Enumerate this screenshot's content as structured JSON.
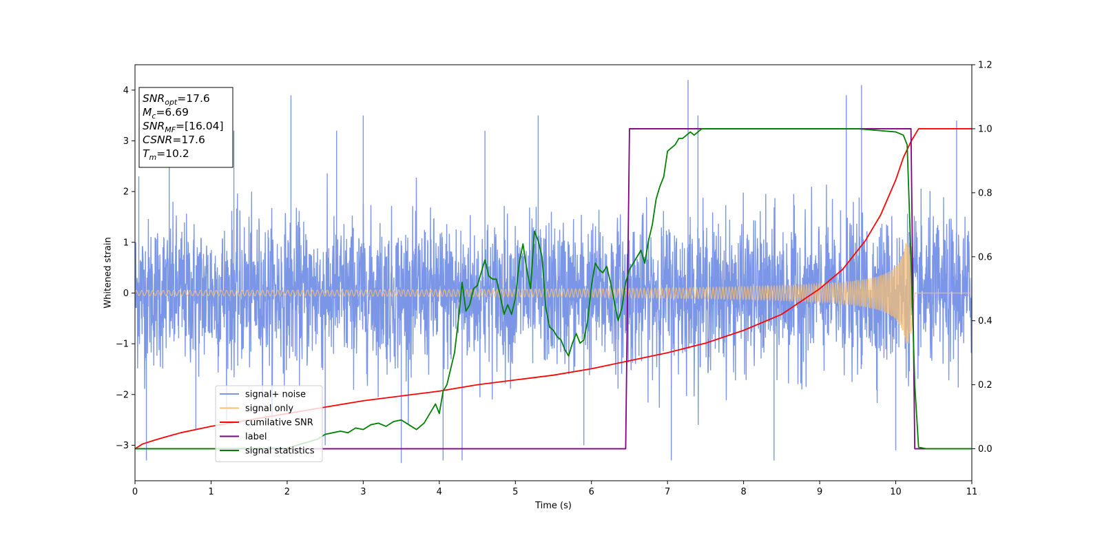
{
  "chart_data": {
    "type": "line",
    "xlabel": "Time (s)",
    "ylabel": "Whitened strain",
    "xlim": [
      0,
      11
    ],
    "ylim_left": [
      -3.7,
      4.5
    ],
    "ylim_right": [
      -0.1,
      1.2
    ],
    "xticks": [
      "0",
      "1",
      "2",
      "3",
      "4",
      "5",
      "6",
      "7",
      "8",
      "9",
      "10",
      "11"
    ],
    "yticks_left": [
      "−3",
      "−2",
      "−1",
      "0",
      "1",
      "2",
      "3",
      "4"
    ],
    "yticks_left_values": [
      -3,
      -2,
      -1,
      0,
      1,
      2,
      3,
      4
    ],
    "yticks_right": [
      "0.0",
      "0.2",
      "0.4",
      "0.6",
      "0.8",
      "1.0",
      "1.2"
    ],
    "yticks_right_values": [
      0.0,
      0.2,
      0.4,
      0.6,
      0.8,
      1.0,
      1.2
    ],
    "grid": false,
    "legend_placement": "lower-left",
    "info_box": [
      {
        "sym": "SNR",
        "sub": "opt",
        "val": "=17.6"
      },
      {
        "sym": "M",
        "sub": "c",
        "val": "=6.69"
      },
      {
        "sym": "SNR",
        "sub": "MF",
        "val": "=[16.04]"
      },
      {
        "sym": "CSNR",
        "sub": "",
        "val": "=17.6"
      },
      {
        "sym": "T",
        "sub": "m",
        "val": "=10.2"
      }
    ],
    "series": [
      {
        "name": "signal+ noise",
        "axis": "left",
        "color": "#7b96e7",
        "kind": "noise",
        "noise_band_typical": 1.7,
        "spikes": [
          [
            0.05,
            2.3
          ],
          [
            0.15,
            -3.3
          ],
          [
            0.45,
            3.2
          ],
          [
            0.8,
            -2.7
          ],
          [
            1.3,
            3.2
          ],
          [
            1.8,
            -2.5
          ],
          [
            2.05,
            3.9
          ],
          [
            2.5,
            -3.0
          ],
          [
            2.65,
            3.2
          ],
          [
            3.0,
            3.5
          ],
          [
            3.5,
            -3.35
          ],
          [
            4.05,
            -3.3
          ],
          [
            4.3,
            -3.3
          ],
          [
            4.6,
            3.2
          ],
          [
            5.3,
            3.5
          ],
          [
            5.9,
            -3.0
          ],
          [
            7.05,
            -3.3
          ],
          [
            7.27,
            4.2
          ],
          [
            7.4,
            3.5
          ],
          [
            8.4,
            -3.3
          ],
          [
            9.35,
            3.9
          ],
          [
            9.55,
            4.1
          ],
          [
            10.0,
            -3.1
          ],
          [
            10.8,
            3.4
          ]
        ]
      },
      {
        "name": "signal only",
        "axis": "left",
        "color": "#f6bf75",
        "kind": "chirp",
        "amp_start": 0.05,
        "amp_end": 1.0,
        "t_merge": 10.2
      },
      {
        "name": "cumilative SNR",
        "axis": "right",
        "color": "#ff0000",
        "x": [
          0,
          0.1,
          0.3,
          0.6,
          1,
          1.5,
          2,
          2.5,
          3,
          3.5,
          4,
          4.5,
          5,
          5.5,
          6,
          6.5,
          7,
          7.5,
          8,
          8.5,
          9,
          9.3,
          9.6,
          9.8,
          10,
          10.1,
          10.2,
          10.3,
          11
        ],
        "y": [
          0.0,
          0.015,
          0.03,
          0.05,
          0.07,
          0.09,
          0.11,
          0.13,
          0.15,
          0.165,
          0.18,
          0.2,
          0.215,
          0.23,
          0.25,
          0.275,
          0.3,
          0.33,
          0.37,
          0.42,
          0.5,
          0.56,
          0.65,
          0.73,
          0.84,
          0.91,
          0.96,
          1.0,
          1.0
        ]
      },
      {
        "name": "label",
        "axis": "right",
        "color": "#800080",
        "x": [
          0,
          6.45,
          6.5,
          10.2,
          10.25,
          11
        ],
        "y": [
          0,
          0,
          1,
          1,
          0,
          0
        ]
      },
      {
        "name": "signal statistics",
        "axis": "right",
        "color": "#008000",
        "x": [
          0,
          1,
          2,
          2.4,
          2.5,
          2.6,
          2.7,
          2.8,
          2.9,
          3.0,
          3.1,
          3.2,
          3.3,
          3.4,
          3.5,
          3.6,
          3.7,
          3.8,
          3.85,
          3.9,
          3.95,
          4.0,
          4.05,
          4.1,
          4.2,
          4.25,
          4.3,
          4.35,
          4.4,
          4.45,
          4.5,
          4.55,
          4.6,
          4.65,
          4.7,
          4.75,
          4.8,
          4.85,
          4.9,
          4.95,
          5.0,
          5.05,
          5.1,
          5.15,
          5.2,
          5.25,
          5.3,
          5.35,
          5.4,
          5.45,
          5.5,
          5.55,
          5.6,
          5.65,
          5.7,
          5.75,
          5.8,
          5.85,
          5.9,
          5.95,
          6.0,
          6.05,
          6.1,
          6.15,
          6.2,
          6.25,
          6.3,
          6.35,
          6.4,
          6.45,
          6.5,
          6.55,
          6.6,
          6.65,
          6.7,
          6.75,
          6.8,
          6.85,
          6.9,
          6.95,
          7.0,
          7.05,
          7.1,
          7.15,
          7.2,
          7.25,
          7.3,
          7.35,
          7.4,
          7.45,
          7.5,
          7.6,
          7.7,
          7.8,
          7.9,
          8.0,
          8.5,
          9.0,
          9.5,
          10.0,
          10.1,
          10.15,
          10.2,
          10.25,
          10.3,
          10.4,
          11
        ],
        "y": [
          0,
          0,
          0.002,
          0.03,
          0.045,
          0.05,
          0.055,
          0.05,
          0.065,
          0.06,
          0.075,
          0.08,
          0.07,
          0.085,
          0.09,
          0.075,
          0.06,
          0.08,
          0.1,
          0.12,
          0.14,
          0.11,
          0.18,
          0.2,
          0.3,
          0.4,
          0.52,
          0.43,
          0.45,
          0.5,
          0.51,
          0.55,
          0.59,
          0.54,
          0.53,
          0.53,
          0.48,
          0.42,
          0.45,
          0.42,
          0.47,
          0.58,
          0.64,
          0.56,
          0.5,
          0.68,
          0.65,
          0.6,
          0.44,
          0.38,
          0.37,
          0.35,
          0.34,
          0.31,
          0.29,
          0.33,
          0.36,
          0.33,
          0.34,
          0.4,
          0.51,
          0.58,
          0.56,
          0.55,
          0.57,
          0.52,
          0.46,
          0.4,
          0.44,
          0.52,
          0.56,
          0.58,
          0.6,
          0.62,
          0.58,
          0.65,
          0.7,
          0.78,
          0.82,
          0.85,
          0.93,
          0.94,
          0.95,
          0.97,
          0.97,
          0.98,
          0.99,
          0.98,
          0.99,
          1.0,
          1.0,
          1.0,
          1.0,
          1.0,
          1.0,
          1.0,
          1.0,
          1.0,
          1.0,
          0.99,
          0.98,
          0.95,
          0.6,
          0.2,
          0.005,
          0.0,
          0.0
        ]
      }
    ]
  }
}
